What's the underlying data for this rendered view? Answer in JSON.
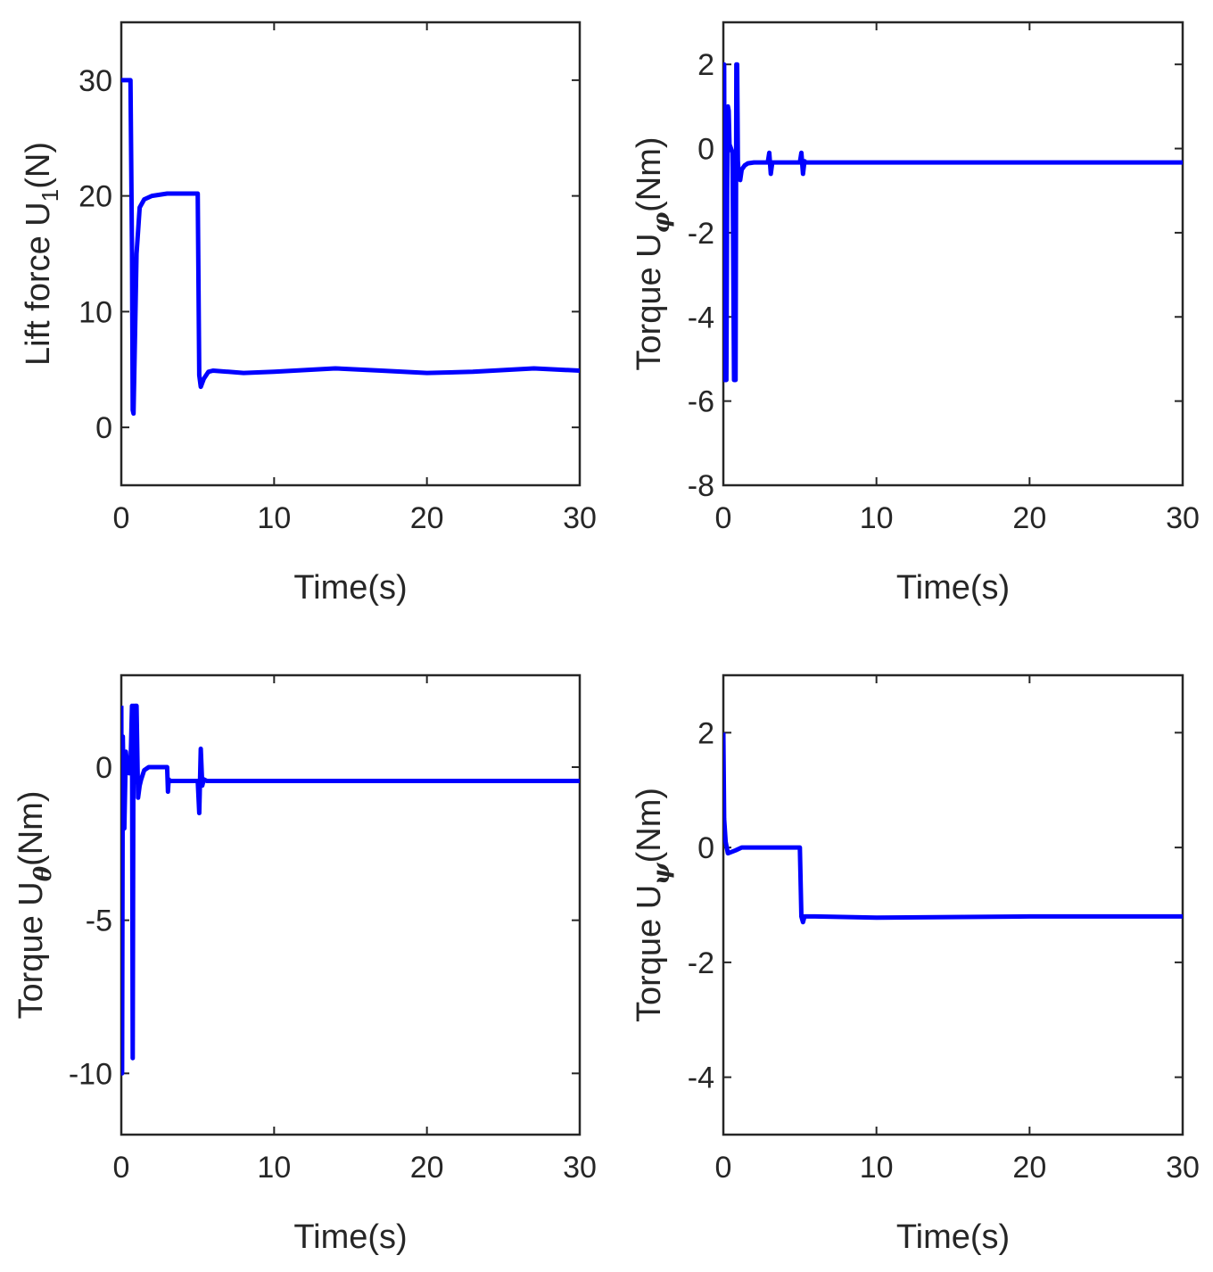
{
  "chart_data": [
    {
      "type": "line",
      "title": "",
      "xlabel": "Time(s)",
      "ylabel": {
        "main": "Lift force U",
        "sub": "1",
        "sub_style": "plain",
        "unit": "(N)"
      },
      "xlim": [
        0,
        30
      ],
      "ylim": [
        -5,
        35
      ],
      "xticks": [
        0,
        10,
        20,
        30
      ],
      "yticks": [
        0,
        10,
        20,
        30
      ],
      "grid": false,
      "series": [
        {
          "name": "U1",
          "color": "#0000ff",
          "x": [
            0,
            0.6,
            0.7,
            0.75,
            0.8,
            0.9,
            1.0,
            1.2,
            1.5,
            2.0,
            3.0,
            4.0,
            5.0,
            5.1,
            5.2,
            5.4,
            5.7,
            6.0,
            7.0,
            8.0,
            10.0,
            14.0,
            17.0,
            20.0,
            23.0,
            27.0,
            30.0
          ],
          "y": [
            30,
            30,
            15,
            1.5,
            1.2,
            8,
            15,
            19,
            19.7,
            20.0,
            20.2,
            20.2,
            20.2,
            4.5,
            3.5,
            4.2,
            4.8,
            4.9,
            4.8,
            4.7,
            4.8,
            5.1,
            4.9,
            4.7,
            4.8,
            5.1,
            4.9
          ]
        }
      ]
    },
    {
      "type": "line",
      "title": "",
      "xlabel": "Time(s)",
      "ylabel": {
        "main": "Torque U",
        "sub": "φ",
        "sub_style": "greek",
        "unit": "(Nm)"
      },
      "xlim": [
        0,
        30
      ],
      "ylim": [
        -8,
        3
      ],
      "xticks": [
        0,
        10,
        20,
        30
      ],
      "yticks": [
        -8,
        -6,
        -4,
        -2,
        0,
        2
      ],
      "grid": false,
      "series": [
        {
          "name": "Uphi",
          "color": "#0000ff",
          "x": [
            0,
            0.05,
            0.1,
            0.2,
            0.25,
            0.3,
            0.35,
            0.4,
            0.5,
            0.6,
            0.7,
            0.8,
            0.85,
            0.9,
            0.95,
            1.0,
            1.1,
            1.2,
            1.4,
            1.6,
            2.0,
            2.9,
            3.0,
            3.1,
            3.2,
            4.0,
            5.0,
            5.1,
            5.2,
            5.3,
            5.4,
            6.0,
            10.0,
            20.0,
            30.0
          ],
          "y": [
            0,
            2.0,
            -5.5,
            -5.5,
            -1,
            1.0,
            0.9,
            0.1,
            0.0,
            -0.1,
            -5.5,
            -5.5,
            2.0,
            2.0,
            -0.3,
            -0.6,
            -0.75,
            -0.5,
            -0.4,
            -0.35,
            -0.33,
            -0.33,
            -0.1,
            -0.6,
            -0.33,
            -0.33,
            -0.33,
            -0.1,
            -0.6,
            -0.3,
            -0.33,
            -0.33,
            -0.33,
            -0.33,
            -0.33
          ]
        }
      ]
    },
    {
      "type": "line",
      "title": "",
      "xlabel": "Time(s)",
      "ylabel": {
        "main": "Torque U",
        "sub": "θ",
        "sub_style": "greek",
        "unit": "(Nm)"
      },
      "xlim": [
        0,
        30
      ],
      "ylim": [
        -12,
        3
      ],
      "xticks": [
        0,
        10,
        20,
        30
      ],
      "yticks": [
        -10,
        -5,
        0
      ],
      "grid": false,
      "series": [
        {
          "name": "Utheta",
          "color": "#0000ff",
          "x": [
            0,
            0.05,
            0.1,
            0.2,
            0.3,
            0.4,
            0.5,
            0.6,
            0.7,
            0.75,
            0.8,
            0.85,
            0.9,
            1.0,
            1.1,
            1.2,
            1.3,
            1.5,
            1.8,
            2.0,
            2.5,
            3.0,
            3.05,
            3.1,
            3.2,
            4.0,
            5.0,
            5.1,
            5.2,
            5.3,
            5.4,
            5.6,
            6.0,
            10.0,
            20.0,
            30.0
          ],
          "y": [
            2.0,
            -10,
            1.0,
            -2.0,
            0.5,
            0.0,
            -0.2,
            0.0,
            2.0,
            -9.5,
            2.0,
            -0.5,
            2.0,
            2.0,
            -1.0,
            -0.6,
            -0.4,
            -0.1,
            0.0,
            0.0,
            0.0,
            0.0,
            -0.8,
            -0.4,
            -0.45,
            -0.45,
            -0.45,
            -1.5,
            0.6,
            -0.6,
            -0.4,
            -0.45,
            -0.45,
            -0.45,
            -0.45,
            -0.45
          ]
        }
      ]
    },
    {
      "type": "line",
      "title": "",
      "xlabel": "Time(s)",
      "ylabel": {
        "main": "Torque U",
        "sub": "ψ",
        "sub_style": "greek",
        "unit": "(Nm)"
      },
      "xlim": [
        0,
        30
      ],
      "ylim": [
        -5,
        3
      ],
      "xticks": [
        0,
        10,
        20,
        30
      ],
      "yticks": [
        -4,
        -2,
        0,
        2
      ],
      "grid": false,
      "series": [
        {
          "name": "Upsi",
          "color": "#0000ff",
          "x": [
            0,
            0.05,
            0.15,
            0.3,
            0.5,
            0.8,
            1.2,
            2.0,
            3.0,
            4.0,
            5.0,
            5.1,
            5.2,
            5.3,
            5.5,
            6.0,
            10.0,
            20.0,
            30.0
          ],
          "y": [
            2.0,
            0.5,
            0.1,
            -0.1,
            -0.08,
            -0.05,
            0.0,
            0.0,
            0.0,
            0.0,
            0.0,
            -1.2,
            -1.3,
            -1.2,
            -1.2,
            -1.2,
            -1.22,
            -1.2,
            -1.2
          ]
        }
      ]
    }
  ]
}
